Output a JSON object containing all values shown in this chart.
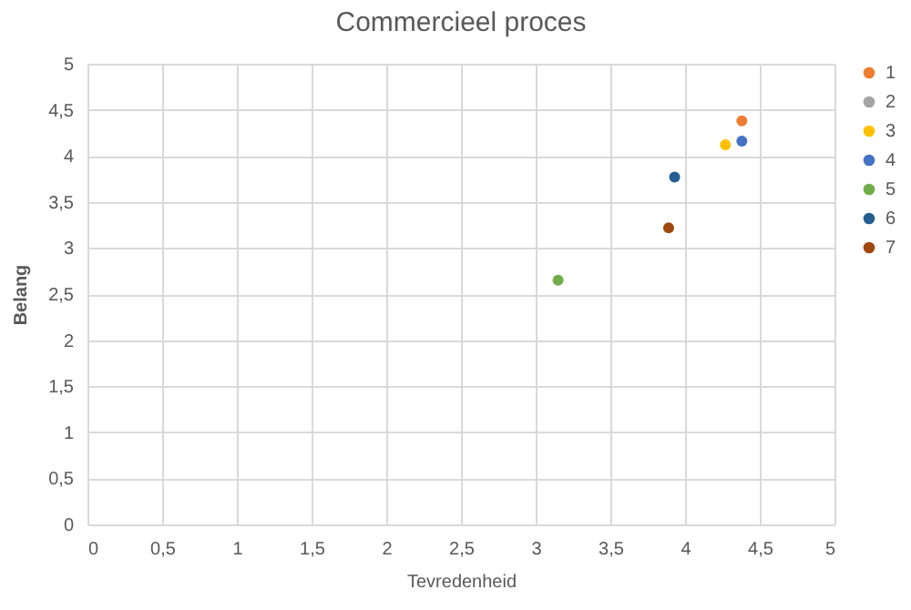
{
  "chart_data": {
    "type": "scatter",
    "title": "Commercieel proces",
    "xlabel": "Tevredenheid",
    "ylabel": "Belang",
    "series": [
      {
        "name": "1",
        "color": "#ed7d31",
        "x": [
          4.38
        ],
        "values": [
          4.38
        ]
      },
      {
        "name": "2",
        "color": "#a5a5a5",
        "x": [
          null
        ],
        "values": [
          null
        ]
      },
      {
        "name": "3",
        "color": "#ffc000",
        "x": [
          4.27
        ],
        "values": [
          4.12
        ]
      },
      {
        "name": "4",
        "color": "#4472c4",
        "x": [
          4.38
        ],
        "values": [
          4.16
        ]
      },
      {
        "name": "5",
        "color": "#70ad47",
        "x": [
          3.15
        ],
        "values": [
          2.65
        ]
      },
      {
        "name": "6",
        "color": "#255e91",
        "x": [
          3.93
        ],
        "values": [
          3.77
        ]
      },
      {
        "name": "7",
        "color": "#9e480e",
        "x": [
          3.89
        ],
        "values": [
          3.22
        ]
      }
    ],
    "xlim": [
      0,
      5
    ],
    "ylim": [
      0,
      5
    ],
    "xticks": [
      0,
      {
        "value": 0.5,
        "label": "0,5"
      },
      1,
      {
        "value": 1.5,
        "label": "1,5"
      },
      2,
      {
        "value": 2.5,
        "label": "2,5"
      },
      3,
      {
        "value": 3.5,
        "label": "3,5"
      },
      4,
      {
        "value": 4.5,
        "label": "4,5"
      },
      5
    ],
    "yticks": [
      0,
      {
        "value": 0.5,
        "label": "0,5"
      },
      1,
      {
        "value": 1.5,
        "label": "1,5"
      },
      2,
      {
        "value": 2.5,
        "label": "2,5"
      },
      3,
      {
        "value": 3.5,
        "label": "3,5"
      },
      4,
      {
        "value": 4.5,
        "label": "4,5"
      },
      5
    ],
    "grid": true,
    "legend": "right",
    "marker": "circle"
  }
}
